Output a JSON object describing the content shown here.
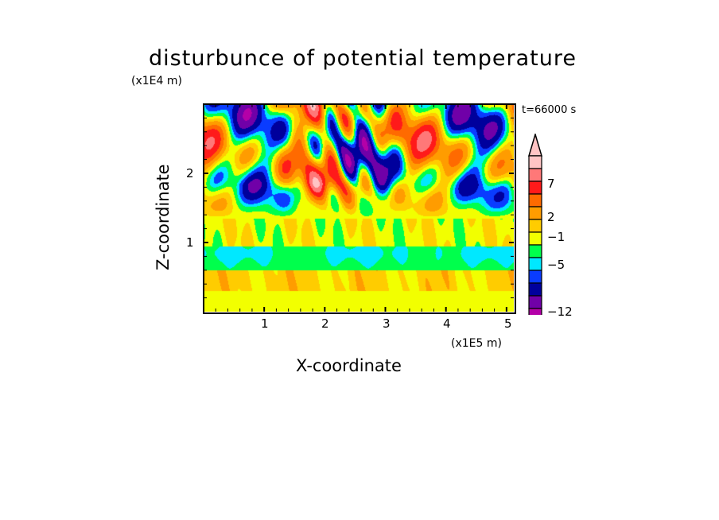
{
  "chart_data": {
    "type": "heatmap",
    "title": "disturbunce of potential temperature",
    "xlabel": "X-coordinate",
    "ylabel": "Z-coordinate",
    "x_unit": "(x1E5 m)",
    "y_unit": "(x1E4 m)",
    "annotation": "t=66000 s",
    "xlim": [
      0,
      5.12
    ],
    "ylim": [
      0,
      3.0
    ],
    "xticks": [
      "1",
      "2",
      "3",
      "4",
      "5"
    ],
    "yticks": [
      "1",
      "2"
    ],
    "colorbar": {
      "labels": [
        "7",
        "2",
        "−1",
        "−5",
        "−12"
      ],
      "colors_top_to_bottom": [
        "#ffc4c4",
        "#ff7878",
        "#ff1a1a",
        "#ff6a00",
        "#ff9c00",
        "#ffcc00",
        "#f2ff00",
        "#00ff4c",
        "#00e8ff",
        "#0a3cff",
        "#00009c",
        "#7000a8",
        "#b400a8",
        "#ec00b0"
      ],
      "extend": "max"
    }
  }
}
